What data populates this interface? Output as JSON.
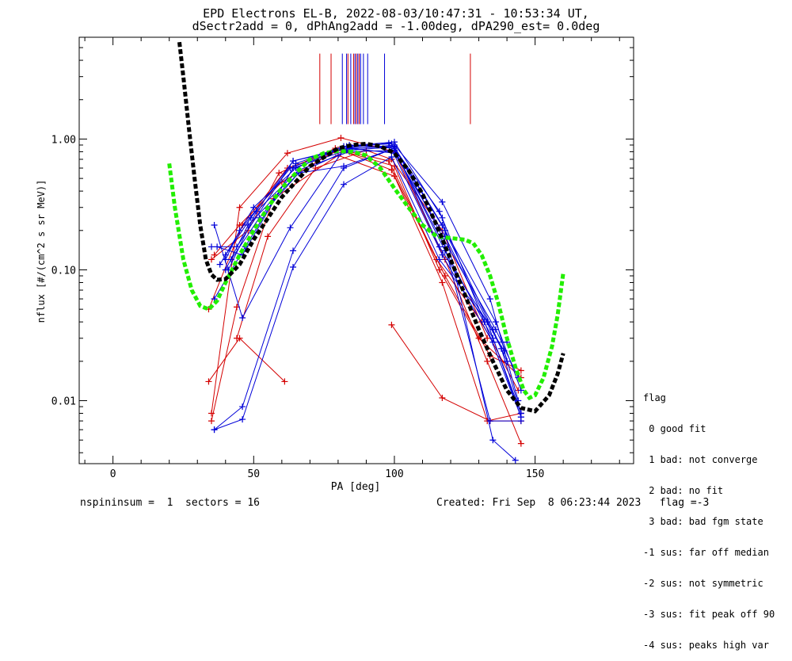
{
  "chart_data": {
    "type": "line",
    "title": "EPD Electrons EL-B, 2022-08-03/10:47:31 - 10:53:34 UT,",
    "subtitle": "dSectr2add = 0, dPhAng2add = -1.00deg, dPA290_est=   0.0deg",
    "xlabel": "PA [deg]",
    "ylabel": "nflux [#/(cm^2 s sr MeV)]",
    "xlim": [
      -12,
      185
    ],
    "ylim": [
      0.0033,
      6.0
    ],
    "yscale": "log",
    "xticks": [
      0,
      50,
      100,
      150
    ],
    "yticks": [
      {
        "value": 0.01,
        "label": "0.01"
      },
      {
        "value": 0.1,
        "label": "0.10"
      },
      {
        "value": 1.0,
        "label": "1.00"
      }
    ],
    "grid": false,
    "red_series": [
      [
        [
          34,
          0.014
        ],
        [
          45,
          0.03
        ],
        [
          61,
          0.014
        ]
      ],
      [
        [
          35,
          0.007
        ],
        [
          44,
          0.052
        ],
        [
          57,
          0.35
        ],
        [
          80,
          0.75
        ],
        [
          100,
          0.52
        ],
        [
          117,
          0.08
        ],
        [
          133,
          0.007
        ],
        [
          145,
          0.008
        ]
      ],
      [
        [
          35,
          0.008
        ],
        [
          45,
          0.3
        ],
        [
          62,
          0.78
        ],
        [
          81,
          1.02
        ],
        [
          100,
          0.8
        ],
        [
          118,
          0.12
        ],
        [
          133,
          0.02
        ],
        [
          145,
          0.0047
        ]
      ],
      [
        [
          36,
          0.13
        ],
        [
          45,
          0.22
        ],
        [
          60,
          0.47
        ],
        [
          80,
          0.83
        ],
        [
          100,
          0.62
        ],
        [
          116,
          0.1
        ],
        [
          130,
          0.03
        ],
        [
          145,
          0.015
        ]
      ],
      [
        [
          34,
          0.05
        ],
        [
          46,
          0.22
        ],
        [
          62,
          0.6
        ],
        [
          81,
          0.82
        ],
        [
          99,
          0.58
        ],
        [
          115,
          0.12
        ],
        [
          131,
          0.04
        ],
        [
          144,
          0.012
        ]
      ],
      [
        [
          35,
          0.12
        ],
        [
          48,
          0.2
        ],
        [
          59,
          0.55
        ],
        [
          79,
          0.85
        ],
        [
          98,
          0.68
        ],
        [
          118,
          0.09
        ],
        [
          134,
          0.022
        ],
        [
          145,
          0.017
        ]
      ],
      [
        [
          44,
          0.03
        ],
        [
          55,
          0.18
        ],
        [
          72,
          0.6
        ],
        [
          90,
          0.82
        ],
        [
          99,
          0.7
        ],
        [
          117,
          0.2
        ],
        [
          133,
          0.03
        ]
      ],
      [
        [
          99,
          0.038
        ],
        [
          117,
          0.0105
        ],
        [
          134,
          0.007
        ],
        [
          145,
          0.007
        ]
      ]
    ],
    "blue_series": [
      [
        [
          36,
          0.006
        ],
        [
          46,
          0.009
        ],
        [
          64,
          0.14
        ],
        [
          82,
          0.6
        ],
        [
          100,
          0.85
        ],
        [
          116,
          0.28
        ],
        [
          132,
          0.04
        ],
        [
          145,
          0.0075
        ]
      ],
      [
        [
          36,
          0.006
        ],
        [
          46,
          0.0072
        ],
        [
          64,
          0.105
        ],
        [
          82,
          0.45
        ],
        [
          99,
          0.73
        ],
        [
          116,
          0.12
        ],
        [
          133,
          0.04
        ],
        [
          145,
          0.0075
        ]
      ],
      [
        [
          36,
          0.22
        ],
        [
          46,
          0.043
        ],
        [
          63,
          0.21
        ],
        [
          82,
          0.83
        ],
        [
          100,
          0.9
        ],
        [
          117,
          0.33
        ],
        [
          134,
          0.06
        ],
        [
          144,
          0.01
        ]
      ],
      [
        [
          36,
          0.06
        ],
        [
          47,
          0.15
        ],
        [
          65,
          0.65
        ],
        [
          82,
          0.88
        ],
        [
          100,
          0.95
        ],
        [
          117,
          0.25
        ],
        [
          135,
          0.005
        ],
        [
          143,
          0.0035
        ]
      ],
      [
        [
          35,
          0.15
        ],
        [
          44,
          0.15
        ],
        [
          64,
          0.68
        ],
        [
          82,
          0.85
        ],
        [
          98,
          0.93
        ],
        [
          117,
          0.13
        ],
        [
          135,
          0.028
        ],
        [
          140,
          0.028
        ]
      ],
      [
        [
          40,
          0.12
        ],
        [
          45,
          0.2
        ],
        [
          63,
          0.6
        ],
        [
          84,
          0.9
        ],
        [
          100,
          0.85
        ],
        [
          118,
          0.2
        ],
        [
          136,
          0.04
        ],
        [
          145,
          0.012
        ]
      ],
      [
        [
          40,
          0.13
        ],
        [
          49,
          0.25
        ],
        [
          64,
          0.68
        ],
        [
          84,
          0.85
        ],
        [
          100,
          0.78
        ],
        [
          118,
          0.18
        ],
        [
          138,
          0.025
        ],
        [
          145,
          0.008
        ]
      ],
      [
        [
          38,
          0.11
        ],
        [
          50,
          0.3
        ],
        [
          65,
          0.6
        ],
        [
          83,
          0.88
        ],
        [
          99,
          0.92
        ],
        [
          118,
          0.14
        ],
        [
          135,
          0.03
        ],
        [
          145,
          0.008
        ]
      ],
      [
        [
          42,
          0.12
        ],
        [
          52,
          0.25
        ],
        [
          66,
          0.55
        ],
        [
          85,
          0.85
        ],
        [
          100,
          0.88
        ],
        [
          117,
          0.18
        ],
        [
          136,
          0.035
        ],
        [
          144,
          0.015
        ]
      ],
      [
        [
          41,
          0.1
        ],
        [
          51,
          0.28
        ],
        [
          66,
          0.58
        ],
        [
          84,
          0.8
        ],
        [
          100,
          0.82
        ],
        [
          118,
          0.15
        ],
        [
          134,
          0.007
        ],
        [
          145,
          0.007
        ]
      ],
      [
        [
          40,
          0.1
        ],
        [
          48,
          0.22
        ],
        [
          66,
          0.55
        ],
        [
          82,
          0.62
        ],
        [
          100,
          0.85
        ],
        [
          116,
          0.15
        ],
        [
          133,
          0.04
        ],
        [
          139,
          0.024
        ]
      ],
      [
        [
          37,
          0.15
        ],
        [
          46,
          0.13
        ],
        [
          64,
          0.6
        ],
        [
          83,
          0.82
        ],
        [
          100,
          0.87
        ],
        [
          117,
          0.22
        ],
        [
          135,
          0.035
        ],
        [
          140,
          0.02
        ]
      ]
    ],
    "black_fit": [
      [
        23.6,
        5.5
      ],
      [
        25,
        3.0
      ],
      [
        27,
        1.2
      ],
      [
        29,
        0.5
      ],
      [
        31,
        0.22
      ],
      [
        33,
        0.12
      ],
      [
        35,
        0.092
      ],
      [
        37,
        0.084
      ],
      [
        40,
        0.085
      ],
      [
        45,
        0.11
      ],
      [
        50,
        0.17
      ],
      [
        60,
        0.36
      ],
      [
        70,
        0.62
      ],
      [
        80,
        0.85
      ],
      [
        85,
        0.9
      ],
      [
        90,
        0.92
      ],
      [
        95,
        0.88
      ],
      [
        100,
        0.78
      ],
      [
        105,
        0.58
      ],
      [
        110,
        0.38
      ],
      [
        115,
        0.22
      ],
      [
        120,
        0.12
      ],
      [
        125,
        0.065
      ],
      [
        130,
        0.035
      ],
      [
        135,
        0.02
      ],
      [
        140,
        0.012
      ],
      [
        145,
        0.0088
      ],
      [
        150,
        0.0083
      ],
      [
        155,
        0.011
      ],
      [
        158,
        0.016
      ],
      [
        160,
        0.023
      ]
    ],
    "green_fit": [
      [
        20,
        0.65
      ],
      [
        22,
        0.3
      ],
      [
        25,
        0.12
      ],
      [
        28,
        0.07
      ],
      [
        31,
        0.053
      ],
      [
        34,
        0.05
      ],
      [
        37,
        0.058
      ],
      [
        40,
        0.08
      ],
      [
        45,
        0.13
      ],
      [
        50,
        0.2
      ],
      [
        55,
        0.3
      ],
      [
        60,
        0.42
      ],
      [
        65,
        0.55
      ],
      [
        70,
        0.7
      ],
      [
        75,
        0.78
      ],
      [
        80,
        0.81
      ],
      [
        85,
        0.8
      ],
      [
        90,
        0.75
      ],
      [
        95,
        0.6
      ],
      [
        100,
        0.42
      ],
      [
        105,
        0.3
      ],
      [
        110,
        0.22
      ],
      [
        115,
        0.18
      ],
      [
        120,
        0.175
      ],
      [
        125,
        0.17
      ],
      [
        128,
        0.16
      ],
      [
        131,
        0.13
      ],
      [
        134,
        0.09
      ],
      [
        137,
        0.055
      ],
      [
        140,
        0.03
      ],
      [
        143,
        0.018
      ],
      [
        146,
        0.012
      ],
      [
        148,
        0.0105
      ],
      [
        150,
        0.011
      ],
      [
        153,
        0.015
      ],
      [
        156,
        0.026
      ],
      [
        158,
        0.045
      ],
      [
        160,
        0.095
      ]
    ],
    "red_vlines": [
      73.5,
      77.5,
      83.5,
      85.5,
      86.5,
      87.5,
      127
    ],
    "blue_vlines": [
      81.5,
      83.0,
      84.5,
      86.0,
      87.0,
      88.0,
      89.0,
      90.5,
      96.5
    ]
  },
  "legend": {
    "title": "flag",
    "items": [
      " 0 good fit",
      " 1 bad: not converge",
      " 2 bad: no fit",
      " 3 bad: bad fgm state",
      "-1 sus: far off median",
      "-2 sus: not symmetric",
      "-3 sus: fit peak off 90",
      "-4 sus: peaks high var"
    ]
  },
  "footer": {
    "left": "nspininsum =  1  sectors = 16",
    "right": "Created: Fri Sep  8 06:23:44 2023   flag =-3"
  },
  "colors": {
    "red": "#d40000",
    "blue": "#0000d8",
    "black_fit": "#000000",
    "green_fit": "#22ee00"
  }
}
